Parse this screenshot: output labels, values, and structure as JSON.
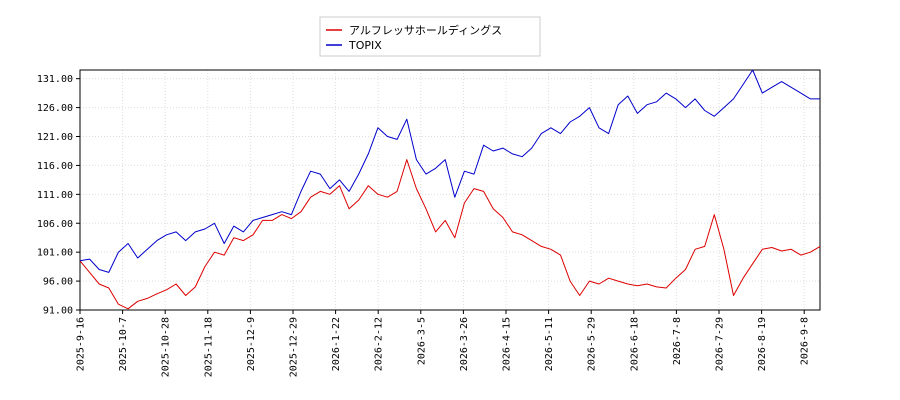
{
  "chart_data": {
    "type": "line",
    "legend_position": "top-center",
    "grid": true,
    "ylim": [
      91.0,
      132.5
    ],
    "yticks": [
      "91.00",
      "96.00",
      "101.00",
      "106.00",
      "111.00",
      "116.00",
      "121.00",
      "126.00",
      "131.00"
    ],
    "xticks": [
      "2025-9-16",
      "2025-10-7",
      "2025-10-28",
      "2025-11-18",
      "2025-12-9",
      "2025-12-29",
      "2026-1-22",
      "2026-2-12",
      "2026-3-5",
      "2026-3-26",
      "2026-4-15",
      "2026-5-11",
      "2026-5-29",
      "2026-6-18",
      "2026-7-8",
      "2026-7-29",
      "2026-8-19",
      "2026-9-8"
    ],
    "series": [
      {
        "name": "アルフレッサホールディングス",
        "color": "#dd0000",
        "values": [
          99.5,
          97.5,
          95.5,
          94.8,
          92.0,
          91.2,
          92.5,
          93.0,
          93.8,
          94.5,
          95.5,
          93.5,
          95.0,
          98.5,
          101.0,
          100.5,
          103.5,
          103.0,
          104.0,
          106.5,
          106.5,
          107.5,
          106.8,
          108.0,
          110.5,
          111.5,
          111.0,
          112.5,
          108.5,
          110.0,
          112.5,
          111.0,
          110.5,
          111.5,
          117.0,
          112.0,
          108.5,
          104.5,
          106.5,
          103.5,
          109.5,
          112.0,
          111.5,
          108.5,
          107.0,
          104.5,
          104.0,
          103.0,
          102.0,
          101.5,
          100.5,
          96.0,
          93.5,
          96.0,
          95.5,
          96.5,
          96.0,
          95.5,
          95.2,
          95.5,
          95.0,
          94.8,
          96.5,
          98.0,
          101.5,
          102.0,
          107.5,
          101.5,
          93.5,
          96.5,
          99.0,
          101.5,
          101.8,
          101.2,
          101.5,
          100.5,
          101.0,
          102.0
        ]
      },
      {
        "name": "TOPIX",
        "color": "#0000cc",
        "values": [
          99.5,
          99.8,
          98.0,
          97.5,
          101.0,
          102.5,
          100.0,
          101.5,
          103.0,
          104.0,
          104.5,
          103.0,
          104.5,
          105.0,
          106.0,
          102.5,
          105.5,
          104.5,
          106.5,
          107.0,
          107.5,
          108.0,
          107.5,
          111.5,
          115.0,
          114.5,
          112.0,
          113.5,
          111.5,
          114.5,
          118.0,
          122.5,
          121.0,
          120.5,
          124.0,
          117.0,
          114.5,
          115.5,
          117.0,
          110.5,
          115.0,
          114.5,
          119.5,
          118.5,
          119.0,
          118.0,
          117.5,
          119.0,
          121.5,
          122.5,
          121.5,
          123.5,
          124.5,
          126.0,
          122.5,
          121.5,
          126.5,
          128.0,
          125.0,
          126.5,
          127.0,
          128.5,
          127.5,
          126.0,
          127.5,
          125.5,
          124.5,
          126.0,
          127.5,
          130.0,
          132.5,
          128.5,
          129.5,
          130.5,
          129.5,
          128.5,
          127.5,
          127.5
        ]
      }
    ]
  }
}
